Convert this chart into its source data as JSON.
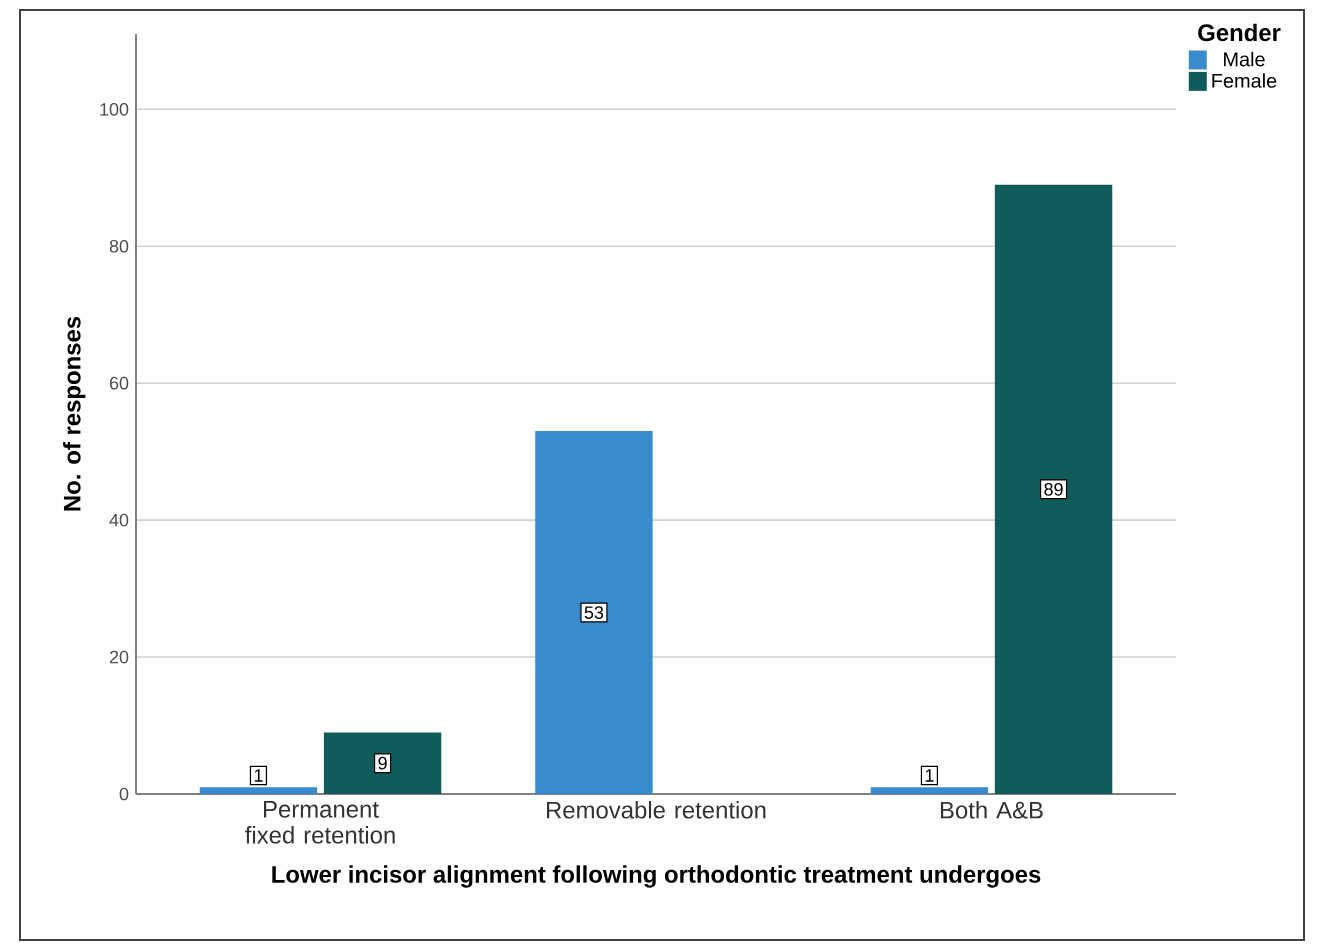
{
  "chart_data": {
    "type": "bar",
    "xlabel": "Lower incisor alignment following orthodontic treatment undergoes",
    "ylabel": "No. of responses",
    "categories": [
      "Permanent fixed retention",
      "Removable retention",
      "Both A&B"
    ],
    "series": [
      {
        "name": "Male",
        "color": "#3a8bcd",
        "values": [
          1,
          53,
          1
        ]
      },
      {
        "name": "Female",
        "color": "#0f5c5a",
        "values": [
          9,
          null,
          89
        ]
      }
    ],
    "ylim": [
      0,
      111
    ],
    "yticks": [
      0,
      20,
      40,
      60,
      80,
      100
    ],
    "grid": "y",
    "legend": "top right",
    "legend_title": "Gender",
    "data_labels": true
  }
}
